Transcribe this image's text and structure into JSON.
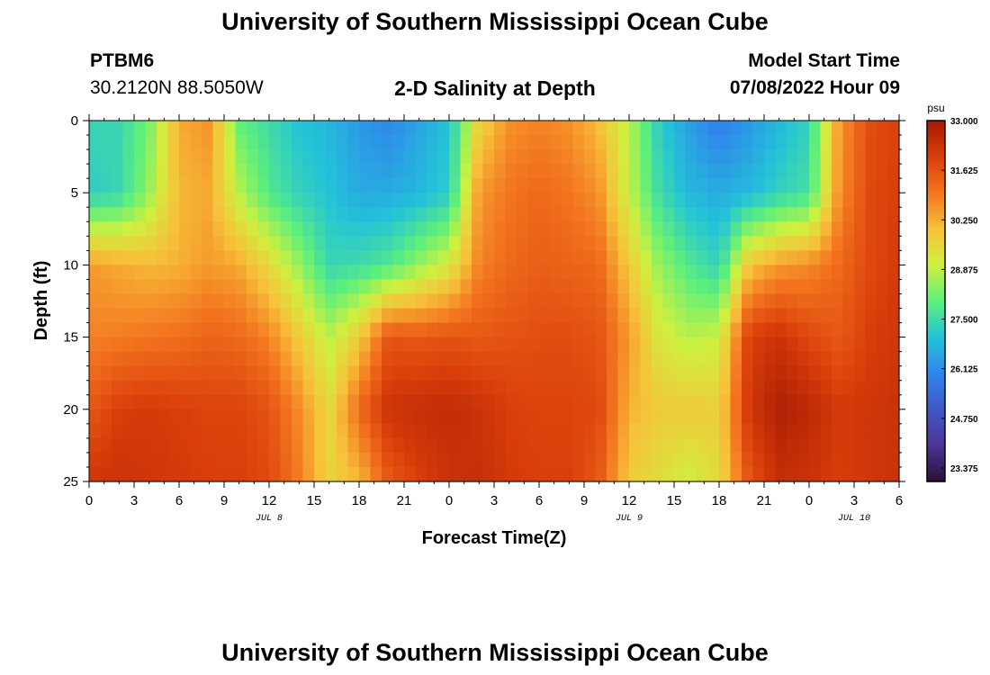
{
  "header": {
    "title": "University of Southern Mississippi Ocean Cube",
    "station_id": "PTBM6",
    "coordinates": "30.2120N  88.5050W",
    "subtitle": "2-D Salinity at Depth",
    "model_start_label": "Model Start Time",
    "model_start_value": "07/08/2022 Hour 09"
  },
  "footer": {
    "title": "University of Southern Mississippi Ocean Cube"
  },
  "colors": {
    "stops": [
      "#2a0f3a",
      "#4a3596",
      "#3f58c5",
      "#2f86ec",
      "#24c3d8",
      "#5ef07a",
      "#cff03f",
      "#f7c13a",
      "#f3741f",
      "#d93e0a",
      "#a51a04"
    ]
  },
  "chart_data": {
    "type": "heatmap",
    "title": "2-D Salinity at Depth",
    "xlabel": "Forecast Time(Z)",
    "ylabel": "Depth (ft)",
    "x_tick_labels": [
      "0",
      "3",
      "6",
      "9",
      "12",
      "15",
      "18",
      "21",
      "0",
      "3",
      "6",
      "9",
      "12",
      "15",
      "18",
      "21",
      "0",
      "3",
      "6"
    ],
    "x_tick_hours": [
      0,
      3,
      6,
      9,
      12,
      15,
      18,
      21,
      24,
      27,
      30,
      33,
      36,
      39,
      42,
      45,
      48,
      51,
      54
    ],
    "xlim": [
      0,
      54
    ],
    "date_labels": [
      {
        "label": "JUL 8",
        "hour": 12
      },
      {
        "label": "JUL 9",
        "hour": 36
      },
      {
        "label": "JUL 10",
        "hour": 51
      }
    ],
    "y_tick_labels": [
      "0",
      "5",
      "10",
      "15",
      "20",
      "25"
    ],
    "y_ticks": [
      0,
      5,
      10,
      15,
      20,
      25
    ],
    "ylim": [
      0,
      25
    ],
    "colorbar": {
      "unit": "psu",
      "tick_labels": [
        "33.000",
        "31.625",
        "30.250",
        "28.875",
        "27.500",
        "26.125",
        "24.750",
        "23.375"
      ],
      "ticks": [
        33.0,
        31.625,
        30.25,
        28.875,
        27.5,
        26.125,
        24.75,
        23.375
      ],
      "range": [
        23.0,
        33.0
      ]
    },
    "profile_hours": [
      0,
      2,
      4,
      6,
      8,
      10,
      12,
      14,
      16,
      18,
      20,
      22,
      24,
      26,
      28,
      30,
      32,
      34,
      36,
      38,
      40,
      42,
      44,
      46,
      48,
      50,
      52,
      54
    ],
    "profile_depths": [
      0,
      5,
      10,
      15,
      20,
      25
    ],
    "salinity_psu": [
      [
        27.4,
        27.2,
        30.5,
        30.8,
        31.5,
        32.2
      ],
      [
        27.4,
        27.4,
        30.3,
        30.9,
        32.0,
        32.3
      ],
      [
        28.2,
        28.5,
        30.1,
        31.0,
        32.1,
        32.2
      ],
      [
        30.3,
        30.1,
        30.2,
        31.1,
        32.0,
        32.1
      ],
      [
        30.6,
        30.3,
        30.5,
        31.3,
        31.9,
        32.0
      ],
      [
        28.0,
        28.8,
        30.3,
        31.2,
        31.9,
        32.0
      ],
      [
        27.5,
        27.8,
        29.5,
        30.8,
        31.6,
        31.8
      ],
      [
        27.0,
        27.3,
        28.5,
        29.8,
        30.7,
        30.9
      ],
      [
        26.8,
        27.0,
        27.4,
        28.8,
        29.5,
        29.6
      ],
      [
        26.3,
        26.6,
        27.5,
        29.8,
        31.2,
        30.1
      ],
      [
        26.0,
        26.6,
        27.8,
        31.6,
        32.3,
        31.5
      ],
      [
        26.5,
        26.8,
        28.5,
        31.5,
        32.4,
        32.0
      ],
      [
        27.0,
        27.2,
        29.2,
        31.6,
        32.5,
        32.3
      ],
      [
        29.6,
        30.5,
        30.8,
        31.5,
        32.3,
        32.4
      ],
      [
        30.6,
        31.0,
        31.2,
        31.6,
        32.0,
        32.1
      ],
      [
        30.8,
        31.2,
        31.4,
        31.7,
        31.9,
        32.0
      ],
      [
        30.6,
        31.0,
        31.3,
        31.7,
        31.9,
        32.0
      ],
      [
        30.0,
        30.6,
        31.2,
        31.6,
        31.8,
        31.5
      ],
      [
        28.8,
        28.9,
        29.8,
        30.5,
        30.2,
        29.8
      ],
      [
        27.2,
        27.5,
        28.5,
        29.2,
        29.8,
        29.4
      ],
      [
        26.4,
        26.8,
        27.8,
        28.8,
        29.8,
        29.0
      ],
      [
        25.8,
        26.6,
        27.3,
        29.0,
        29.7,
        29.5
      ],
      [
        26.3,
        26.8,
        29.9,
        32.0,
        32.2,
        31.6
      ],
      [
        26.8,
        27.3,
        30.5,
        32.3,
        32.8,
        32.4
      ],
      [
        27.3,
        27.6,
        30.7,
        31.8,
        32.6,
        32.3
      ],
      [
        30.5,
        30.6,
        31.2,
        31.5,
        32.1,
        32.0
      ],
      [
        31.7,
        31.8,
        31.8,
        32.0,
        32.2,
        32.2
      ],
      [
        32.0,
        32.0,
        32.1,
        32.2,
        32.3,
        32.3
      ]
    ]
  }
}
